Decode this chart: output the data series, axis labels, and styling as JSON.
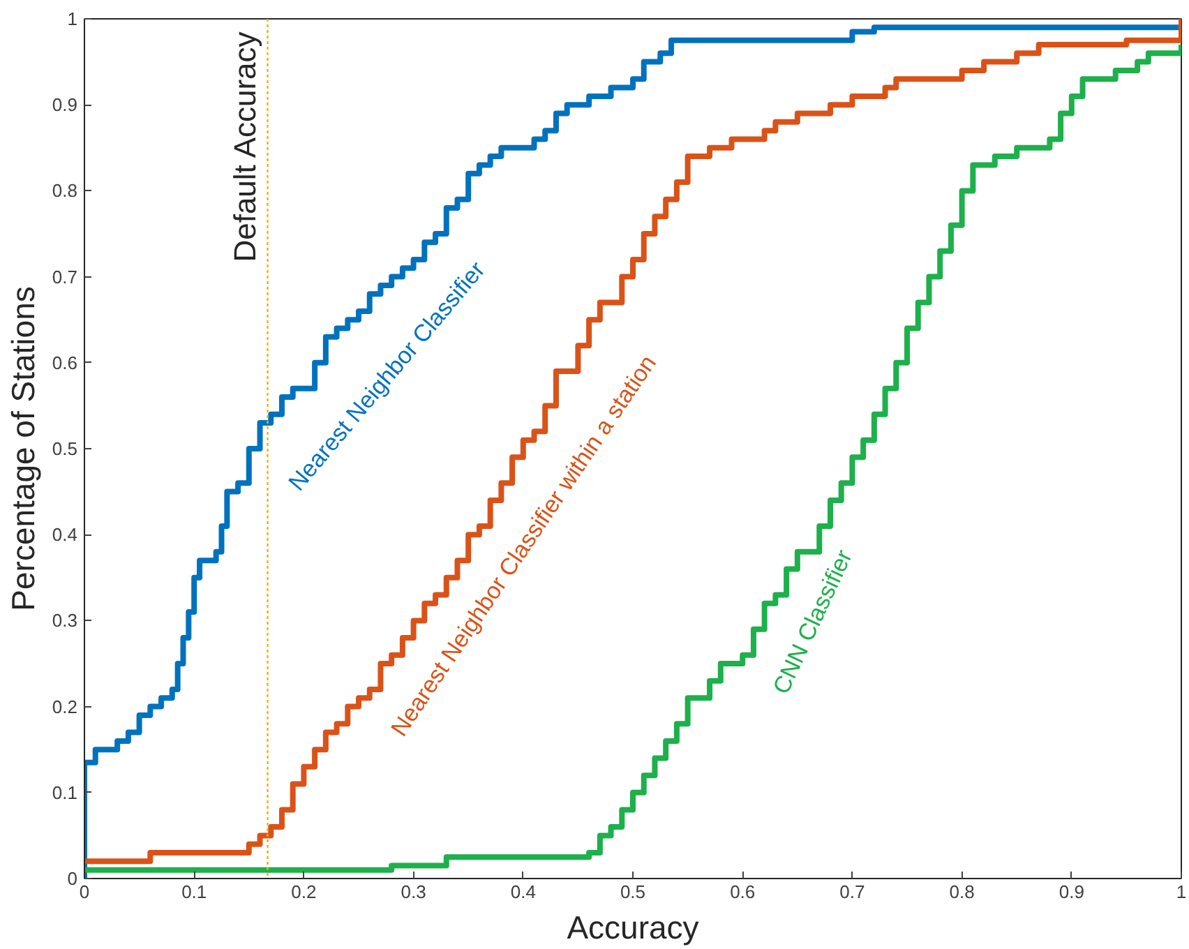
{
  "chart_data": {
    "type": "step",
    "xlabel": "Accuracy",
    "ylabel": "Percentage of Stations",
    "xlim": [
      0,
      1
    ],
    "ylim": [
      0,
      1
    ],
    "xticks": [
      0,
      0.1,
      0.2,
      0.3,
      0.4,
      0.5,
      0.6,
      0.7,
      0.8,
      0.9,
      1
    ],
    "yticks": [
      0,
      0.1,
      0.2,
      0.3,
      0.4,
      0.5,
      0.6,
      0.7,
      0.8,
      0.9,
      1
    ],
    "grid": false,
    "ref_lines": [
      {
        "axis": "x",
        "value": 0.167,
        "label": "Default Accuracy",
        "color": "#f0b000",
        "line_style": "dotted"
      }
    ],
    "series": [
      {
        "name": "Nearest Neighbor Classifier",
        "color": "#0072bd",
        "x": [
          0,
          0,
          0.01,
          0.03,
          0.04,
          0.05,
          0.06,
          0.07,
          0.08,
          0.085,
          0.09,
          0.095,
          0.1,
          0.105,
          0.12,
          0.125,
          0.13,
          0.14,
          0.15,
          0.16,
          0.17,
          0.18,
          0.19,
          0.21,
          0.22,
          0.23,
          0.24,
          0.25,
          0.26,
          0.27,
          0.28,
          0.29,
          0.3,
          0.31,
          0.32,
          0.33,
          0.34,
          0.35,
          0.36,
          0.37,
          0.38,
          0.41,
          0.42,
          0.43,
          0.44,
          0.46,
          0.48,
          0.5,
          0.51,
          0.525,
          0.535,
          0.7,
          0.72,
          1
        ],
        "values": [
          0,
          0.135,
          0.15,
          0.16,
          0.17,
          0.19,
          0.2,
          0.21,
          0.22,
          0.25,
          0.28,
          0.31,
          0.35,
          0.37,
          0.38,
          0.41,
          0.45,
          0.46,
          0.5,
          0.53,
          0.54,
          0.56,
          0.57,
          0.6,
          0.63,
          0.64,
          0.65,
          0.66,
          0.68,
          0.69,
          0.7,
          0.71,
          0.72,
          0.74,
          0.75,
          0.78,
          0.79,
          0.82,
          0.83,
          0.84,
          0.85,
          0.86,
          0.87,
          0.89,
          0.9,
          0.91,
          0.92,
          0.93,
          0.95,
          0.96,
          0.975,
          0.985,
          0.99,
          1
        ]
      },
      {
        "name": "Nearest Neighbor Classifier within a station",
        "color": "#d95319",
        "x": [
          0,
          0.06,
          0.15,
          0.16,
          0.17,
          0.18,
          0.19,
          0.2,
          0.21,
          0.22,
          0.23,
          0.24,
          0.25,
          0.26,
          0.27,
          0.28,
          0.29,
          0.3,
          0.31,
          0.32,
          0.33,
          0.34,
          0.35,
          0.36,
          0.37,
          0.38,
          0.39,
          0.4,
          0.41,
          0.42,
          0.43,
          0.45,
          0.46,
          0.47,
          0.49,
          0.5,
          0.51,
          0.52,
          0.53,
          0.54,
          0.55,
          0.57,
          0.59,
          0.62,
          0.63,
          0.65,
          0.68,
          0.7,
          0.73,
          0.74,
          0.8,
          0.82,
          0.85,
          0.87,
          0.95,
          1
        ],
        "values": [
          0.02,
          0.03,
          0.04,
          0.05,
          0.06,
          0.08,
          0.11,
          0.13,
          0.15,
          0.17,
          0.18,
          0.2,
          0.21,
          0.22,
          0.25,
          0.26,
          0.28,
          0.3,
          0.32,
          0.33,
          0.35,
          0.37,
          0.4,
          0.41,
          0.44,
          0.46,
          0.49,
          0.51,
          0.52,
          0.55,
          0.59,
          0.62,
          0.65,
          0.67,
          0.7,
          0.72,
          0.75,
          0.77,
          0.79,
          0.81,
          0.84,
          0.85,
          0.86,
          0.87,
          0.88,
          0.89,
          0.9,
          0.91,
          0.92,
          0.93,
          0.94,
          0.95,
          0.96,
          0.97,
          0.975,
          1
        ]
      },
      {
        "name": "CNN Classifier",
        "color": "#1db04b",
        "x": [
          0,
          0.28,
          0.33,
          0.46,
          0.47,
          0.48,
          0.49,
          0.5,
          0.51,
          0.52,
          0.53,
          0.54,
          0.55,
          0.57,
          0.58,
          0.6,
          0.61,
          0.62,
          0.63,
          0.64,
          0.65,
          0.67,
          0.68,
          0.69,
          0.7,
          0.71,
          0.72,
          0.73,
          0.74,
          0.75,
          0.76,
          0.77,
          0.78,
          0.79,
          0.8,
          0.81,
          0.83,
          0.85,
          0.88,
          0.89,
          0.9,
          0.91,
          0.94,
          0.96,
          0.97,
          1
        ],
        "values": [
          0.01,
          0.015,
          0.025,
          0.03,
          0.05,
          0.06,
          0.08,
          0.1,
          0.12,
          0.14,
          0.16,
          0.18,
          0.21,
          0.23,
          0.25,
          0.26,
          0.29,
          0.32,
          0.33,
          0.36,
          0.38,
          0.41,
          0.44,
          0.46,
          0.49,
          0.51,
          0.54,
          0.57,
          0.6,
          0.64,
          0.67,
          0.7,
          0.73,
          0.76,
          0.8,
          0.83,
          0.84,
          0.85,
          0.86,
          0.89,
          0.91,
          0.93,
          0.94,
          0.95,
          0.96,
          0.97
        ]
      }
    ]
  }
}
